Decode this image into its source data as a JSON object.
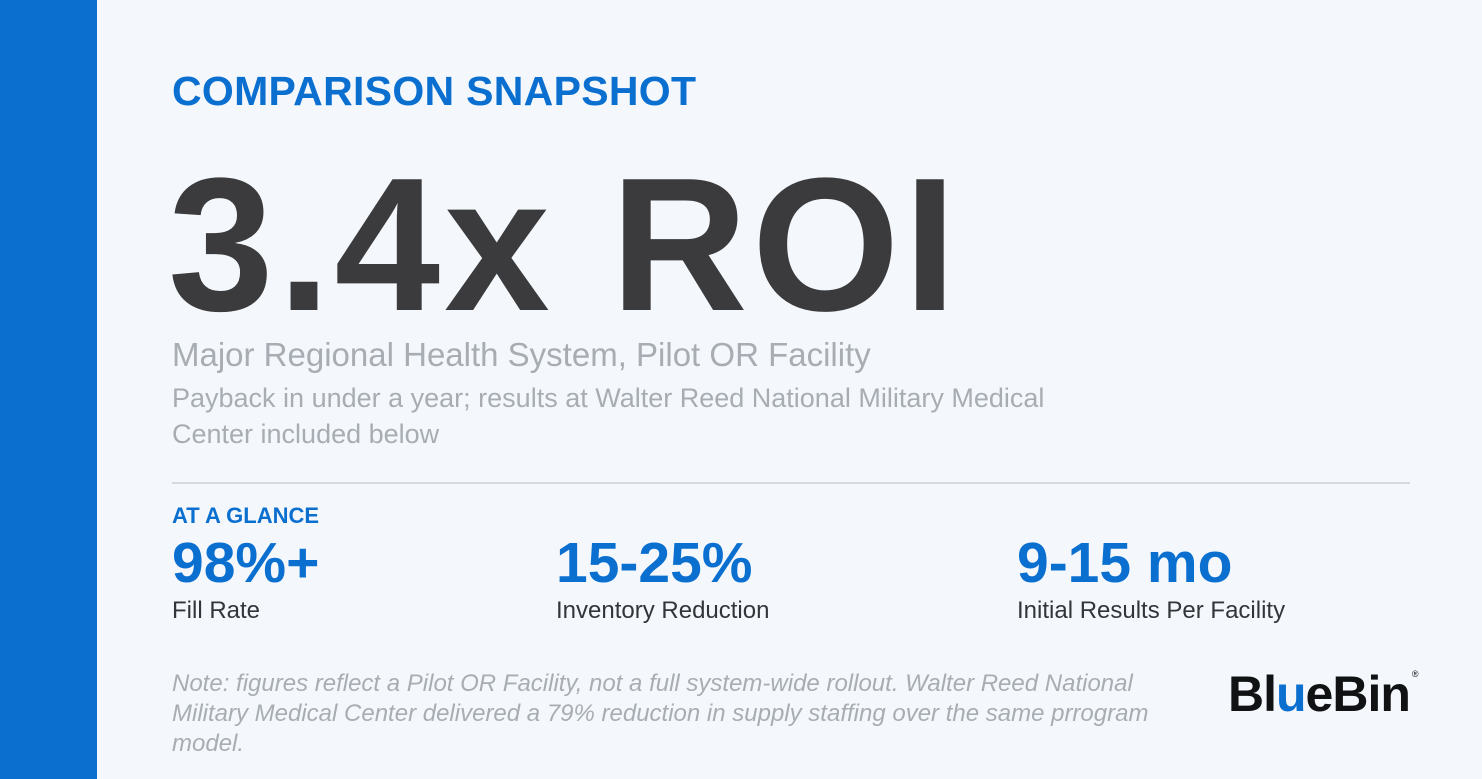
{
  "colors": {
    "accent": "#0b6fd0",
    "background": "#f4f8fc",
    "headline": "#3b3b3d",
    "muted": "#a7adb3",
    "text": "#333538"
  },
  "heading": "COMPARISON SNAPSHOT",
  "headline": "3.4x ROI",
  "subtitle": "Major Regional Health System, Pilot OR Facility",
  "description": "Payback in under a year; results at Walter Reed National Military Medical Center included below",
  "glance_label": "AT A GLANCE",
  "stats": [
    {
      "value": "98%+",
      "label": "Fill Rate"
    },
    {
      "value": "15-25%",
      "label": "Inventory Reduction"
    },
    {
      "value": "9-15 mo",
      "label": "Initial Results Per Facility"
    }
  ],
  "note": "Note: figures reflect a Pilot OR Facility, not a full system-wide rollout. Walter Reed National Military Medical Center delivered a 79% reduction in supply staffing over the same prrogram model.",
  "logo": {
    "part1": "Bl",
    "part2": "u",
    "part3": "eBin",
    "mark": "®"
  }
}
